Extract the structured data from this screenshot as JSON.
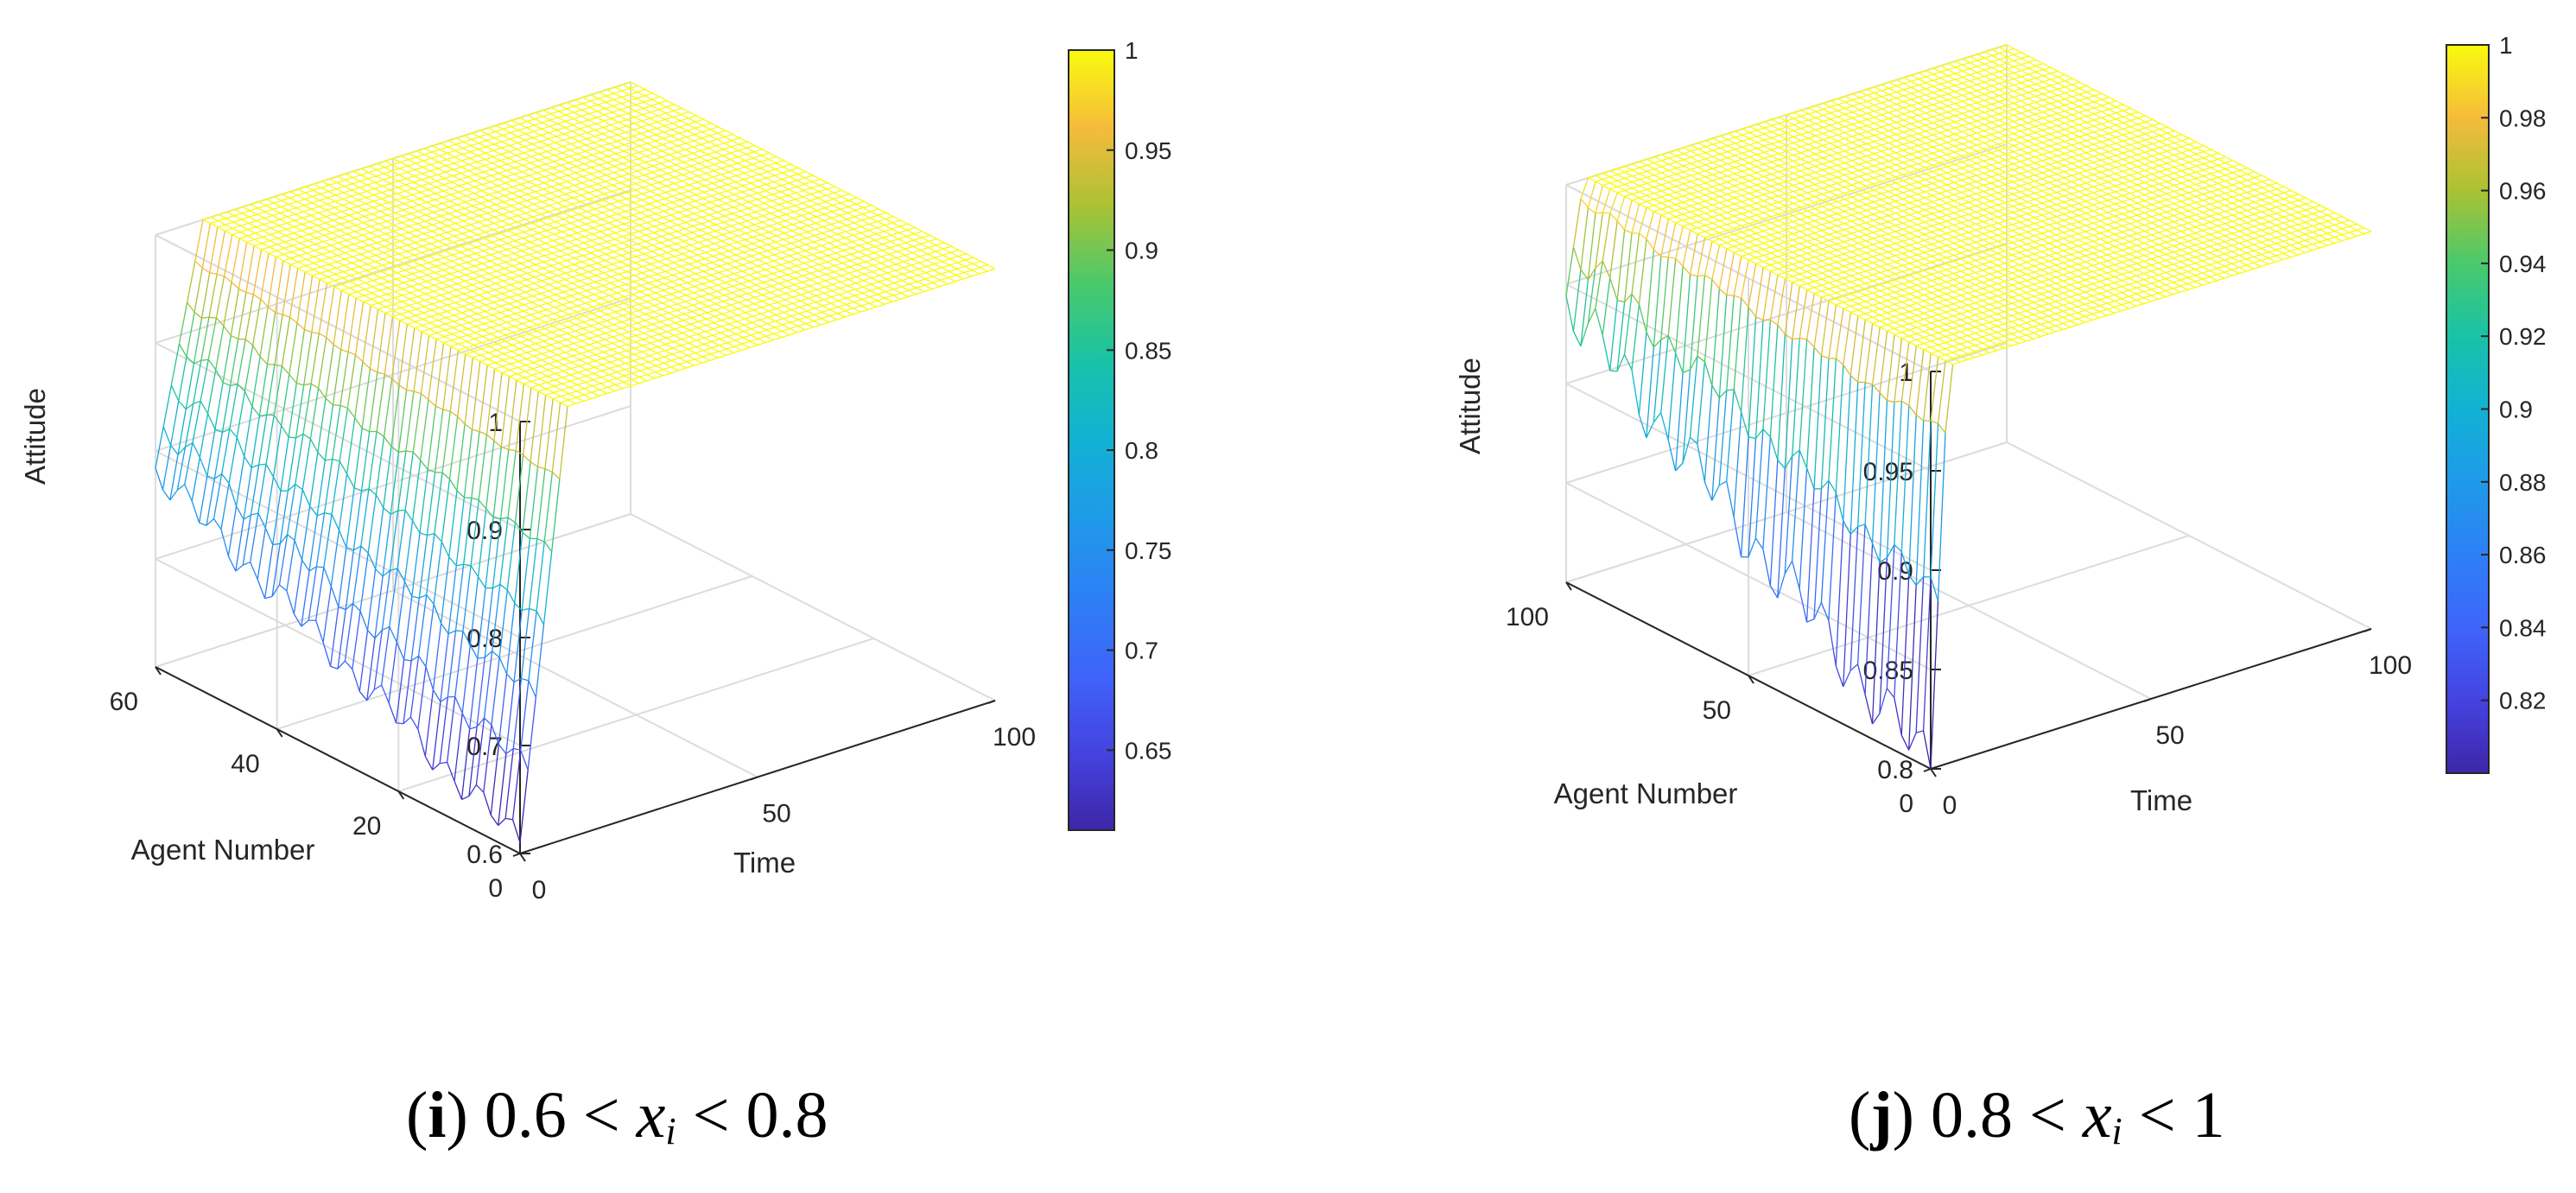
{
  "chart_data": [
    {
      "type": "surface",
      "panel": "i",
      "caption": {
        "letter": "i",
        "range_low": "0.6",
        "var": "x",
        "sub": "i",
        "range_high": "0.8",
        "lt": "<"
      },
      "zlabel": "Attitude",
      "xlabel": "Time",
      "ylabel": "Agent Number",
      "xticks": [
        "0",
        "50",
        "100"
      ],
      "yticks": [
        "0",
        "20",
        "40",
        "60"
      ],
      "zticks": [
        "0.6",
        "0.7",
        "0.8",
        "0.9",
        "1"
      ],
      "xlim": [
        0,
        100
      ],
      "ylim": [
        0,
        60
      ],
      "zlim": [
        0.6,
        1
      ],
      "colorbar": {
        "ticks": [
          "0.65",
          "0.7",
          "0.75",
          "0.8",
          "0.85",
          "0.9",
          "0.95",
          "1"
        ],
        "min": 0.61,
        "max": 1.0
      },
      "surface": {
        "initial_min": 0.61,
        "initial_max": 0.78,
        "converged_value": 1.0,
        "convergence_time": 10
      }
    },
    {
      "type": "surface",
      "panel": "j",
      "caption": {
        "letter": "j",
        "range_low": "0.8",
        "var": "x",
        "sub": "i",
        "range_high": "1",
        "lt": "<"
      },
      "zlabel": "Attitude",
      "xlabel": "Time",
      "ylabel": "Agent Number",
      "xticks": [
        "0",
        "50",
        "100"
      ],
      "yticks": [
        "0",
        "50",
        "100"
      ],
      "zticks": [
        "0.8",
        "0.85",
        "0.9",
        "0.95",
        "1"
      ],
      "xlim": [
        0,
        100
      ],
      "ylim": [
        0,
        100
      ],
      "zlim": [
        0.8,
        1
      ],
      "colorbar": {
        "ticks": [
          "0.82",
          "0.84",
          "0.86",
          "0.88",
          "0.9",
          "0.92",
          "0.94",
          "0.96",
          "0.98",
          "1"
        ],
        "min": 0.8,
        "max": 1.0
      },
      "surface": {
        "initial_min": 0.8,
        "initial_max": 0.94,
        "converged_value": 1.0,
        "convergence_time": 4
      }
    }
  ]
}
